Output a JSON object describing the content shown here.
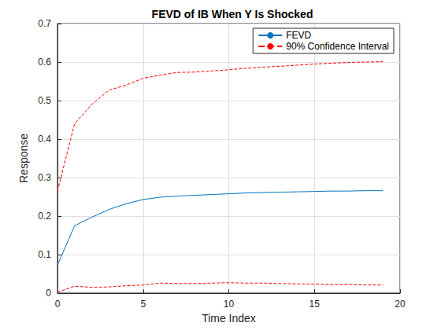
{
  "chart_data": {
    "type": "line",
    "title": "FEVD of IB When Y Is Shocked",
    "xlabel": "Time Index",
    "ylabel": "Response",
    "x": [
      0,
      1,
      2,
      3,
      4,
      5,
      6,
      7,
      8,
      9,
      10,
      11,
      12,
      13,
      14,
      15,
      16,
      17,
      18,
      19
    ],
    "series": [
      {
        "name": "FEVD",
        "color": "#0072bd",
        "line_style": "solid",
        "marker": "none",
        "values": [
          0.073,
          0.175,
          0.197,
          0.217,
          0.232,
          0.243,
          0.249,
          0.252,
          0.254,
          0.256,
          0.258,
          0.26,
          0.261,
          0.262,
          0.263,
          0.264,
          0.265,
          0.265,
          0.266,
          0.266
        ]
      },
      {
        "name": "90% Confidence Interval",
        "color": "#ff0000",
        "line_style": "dashed",
        "marker": "none",
        "values": [
          0.265,
          0.44,
          0.49,
          0.527,
          0.54,
          0.558,
          0.566,
          0.573,
          0.574,
          0.577,
          0.58,
          0.584,
          0.587,
          0.589,
          0.592,
          0.595,
          0.597,
          0.599,
          0.6,
          0.601
        ]
      },
      {
        "name": "90% Confidence Interval",
        "color": "#ff0000",
        "line_style": "dashed",
        "marker": "none",
        "values": [
          0.002,
          0.018,
          0.015,
          0.016,
          0.019,
          0.021,
          0.026,
          0.025,
          0.025,
          0.026,
          0.027,
          0.026,
          0.026,
          0.025,
          0.024,
          0.023,
          0.022,
          0.022,
          0.021,
          0.021
        ]
      }
    ],
    "xlim": [
      0,
      20
    ],
    "xticks": [
      0,
      5,
      10,
      15,
      20
    ],
    "ylim": [
      0,
      0.7
    ],
    "yticks": [
      0,
      0.1,
      0.2,
      0.3,
      0.4,
      0.5,
      0.6,
      0.7
    ],
    "grid": true,
    "legend": "top-right"
  }
}
